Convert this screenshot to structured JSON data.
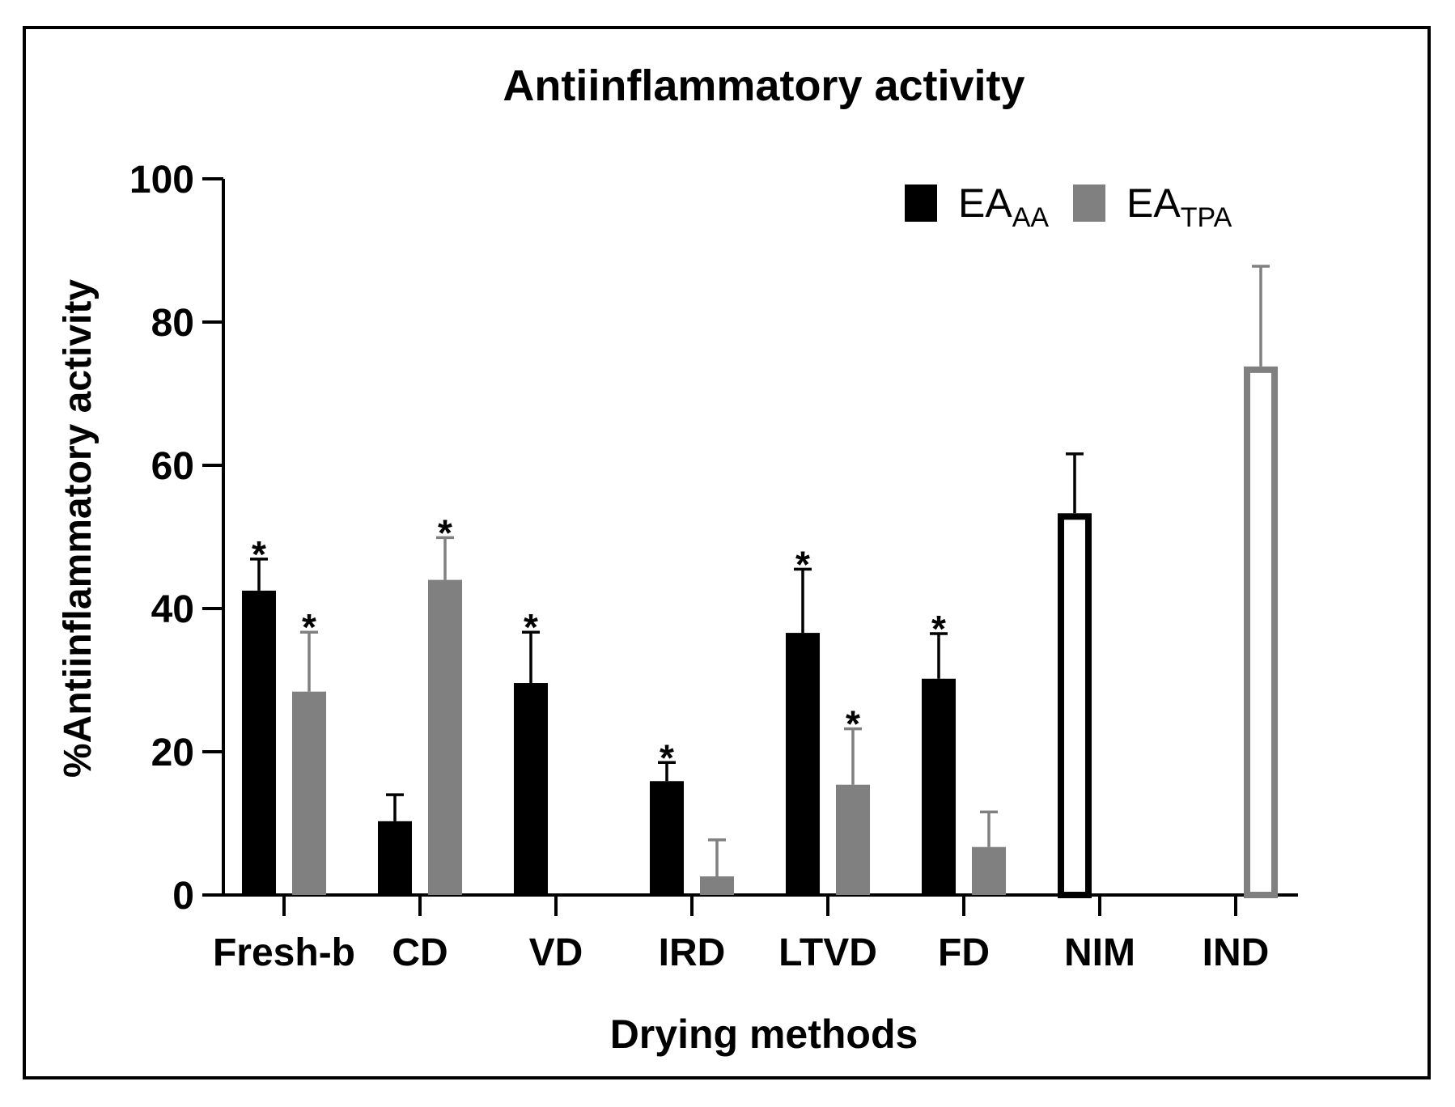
{
  "chart_data": {
    "type": "bar",
    "title": "Antiinflammatory activity",
    "xlabel": "Drying methods",
    "ylabel": "%Antiinflammatory activity",
    "ylim": [
      0,
      100
    ],
    "yticks": [
      0,
      20,
      40,
      60,
      80,
      100
    ],
    "categories": [
      "Fresh-b",
      "CD",
      "VD",
      "IRD",
      "LTVD",
      "FD",
      "NIM",
      "IND"
    ],
    "legend_position": "top-right",
    "series": [
      {
        "name": "EA",
        "subscript": "AA",
        "color": "#000000",
        "values": [
          42.5,
          10.3,
          29.6,
          15.9,
          36.6,
          30.2,
          null,
          null
        ],
        "errors": [
          4.4,
          3.7,
          7.1,
          2.6,
          8.9,
          6.3,
          null,
          null
        ],
        "significant": [
          true,
          false,
          true,
          true,
          true,
          true,
          false,
          false
        ]
      },
      {
        "name": "EA",
        "subscript": "TPA",
        "color": "#808080",
        "values": [
          28.4,
          44.0,
          null,
          2.6,
          15.4,
          6.7,
          null,
          null
        ],
        "errors": [
          8.3,
          5.9,
          null,
          5.1,
          7.8,
          4.9,
          null,
          null
        ],
        "significant": [
          true,
          true,
          false,
          false,
          true,
          false,
          false,
          false
        ]
      }
    ],
    "controls": [
      {
        "category": "NIM",
        "value": 53.3,
        "error": 8.3,
        "color": "#000000",
        "style": "outline"
      },
      {
        "category": "IND",
        "value": 73.8,
        "error": 14.0,
        "color": "#808080",
        "style": "outline"
      }
    ],
    "annotation_symbol": "*"
  }
}
